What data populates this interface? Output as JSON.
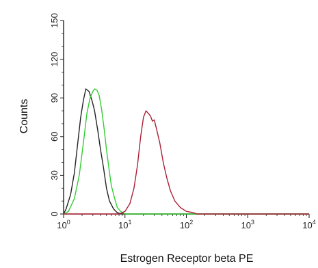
{
  "chart_data": {
    "type": "line",
    "title": "",
    "xlabel": "Estrogen Receptor beta PE",
    "ylabel": "Counts",
    "x_scale": "log",
    "xlim": [
      1,
      10000
    ],
    "ylim": [
      0,
      150
    ],
    "x_ticks": [
      1,
      10,
      100,
      1000,
      10000
    ],
    "x_tick_labels": [
      {
        "base": "10",
        "exp": "0"
      },
      {
        "base": "10",
        "exp": "1"
      },
      {
        "base": "10",
        "exp": "2"
      },
      {
        "base": "10",
        "exp": "3"
      },
      {
        "base": "10",
        "exp": "4"
      }
    ],
    "y_ticks": [
      0,
      30,
      60,
      90,
      120,
      150
    ],
    "y_tick_labels": [
      "0",
      "30",
      "60",
      "90",
      "120",
      "150"
    ],
    "grid": false,
    "legend": "none",
    "series": [
      {
        "color": "#222222",
        "points": [
          [
            1,
            0
          ],
          [
            1.1,
            4
          ],
          [
            1.3,
            15
          ],
          [
            1.5,
            32
          ],
          [
            1.7,
            55
          ],
          [
            1.9,
            75
          ],
          [
            2.1,
            88
          ],
          [
            2.3,
            97
          ],
          [
            2.6,
            95
          ],
          [
            2.9,
            88
          ],
          [
            3.2,
            80
          ],
          [
            3.6,
            65
          ],
          [
            4.0,
            50
          ],
          [
            4.5,
            35
          ],
          [
            5.0,
            20
          ],
          [
            5.6,
            10
          ],
          [
            6.5,
            4
          ],
          [
            7.5,
            1
          ],
          [
            9,
            0
          ],
          [
            10000,
            0
          ]
        ]
      },
      {
        "color": "#33cc33",
        "points": [
          [
            1,
            0
          ],
          [
            1.2,
            2
          ],
          [
            1.5,
            12
          ],
          [
            1.8,
            30
          ],
          [
            2.1,
            55
          ],
          [
            2.4,
            78
          ],
          [
            2.7,
            90
          ],
          [
            3.0,
            95
          ],
          [
            3.2,
            97
          ],
          [
            3.5,
            96
          ],
          [
            3.8,
            92
          ],
          [
            4.2,
            80
          ],
          [
            4.6,
            65
          ],
          [
            5.0,
            50
          ],
          [
            5.5,
            35
          ],
          [
            6.0,
            22
          ],
          [
            6.8,
            12
          ],
          [
            7.5,
            5
          ],
          [
            8.5,
            2
          ],
          [
            10,
            0
          ],
          [
            10000,
            0
          ]
        ]
      },
      {
        "color": "#aa1f35",
        "points": [
          [
            1,
            0
          ],
          [
            8,
            0
          ],
          [
            10,
            2
          ],
          [
            12,
            8
          ],
          [
            14,
            20
          ],
          [
            16,
            38
          ],
          [
            18,
            60
          ],
          [
            20,
            75
          ],
          [
            22,
            80
          ],
          [
            24,
            78
          ],
          [
            26,
            76
          ],
          [
            28,
            72
          ],
          [
            30,
            73
          ],
          [
            33,
            65
          ],
          [
            37,
            55
          ],
          [
            42,
            40
          ],
          [
            48,
            28
          ],
          [
            55,
            18
          ],
          [
            65,
            10
          ],
          [
            80,
            5
          ],
          [
            100,
            2
          ],
          [
            130,
            1
          ],
          [
            150,
            0
          ],
          [
            10000,
            0
          ]
        ]
      }
    ]
  }
}
